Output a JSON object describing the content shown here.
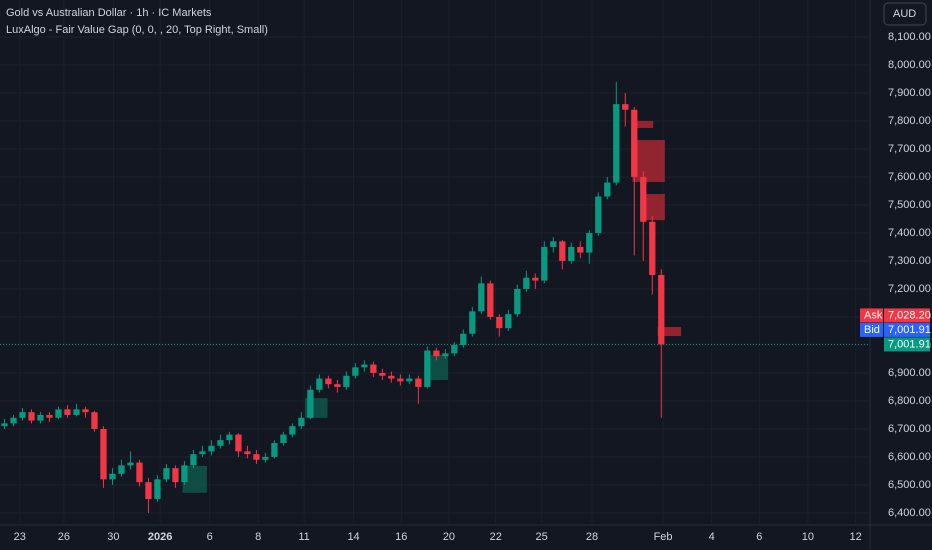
{
  "chart_data": {
    "type": "candlestick",
    "title": "Gold vs Australian Dollar · 1h · IC Markets",
    "subtitle": "LuxAlgo - Fair Value Gap (0, 0, , 20, Top Right, Small)",
    "currency_button": "AUD",
    "up_color": "#089981",
    "down_color": "#f23645",
    "ylim": [
      6357,
      8232
    ],
    "yticks": [
      {
        "value": 6400,
        "label": "6,400.00"
      },
      {
        "value": 6500,
        "label": "6,500.00"
      },
      {
        "value": 6600,
        "label": "6,600.00"
      },
      {
        "value": 6700,
        "label": "6,700.00"
      },
      {
        "value": 6800,
        "label": "6,800.00"
      },
      {
        "value": 6900,
        "label": "6,900.00"
      },
      {
        "value": 7000,
        "label": "7,000.00"
      },
      {
        "value": 7100,
        "label": "7,100.00"
      },
      {
        "value": 7200,
        "label": "7,200.00"
      },
      {
        "value": 7300,
        "label": "7,300.00"
      },
      {
        "value": 7400,
        "label": "7,400.00"
      },
      {
        "value": 7500,
        "label": "7,500.00"
      },
      {
        "value": 7600,
        "label": "7,600.00"
      },
      {
        "value": 7700,
        "label": "7,700.00"
      },
      {
        "value": 7800,
        "label": "7,800.00"
      },
      {
        "value": 7900,
        "label": "7,900.00"
      },
      {
        "value": 8000,
        "label": "8,000.00"
      },
      {
        "value": 8100,
        "label": "8,100.00"
      }
    ],
    "xlim": [
      -0.5,
      96.2
    ],
    "xticks": [
      {
        "value": 1.7,
        "label": "23"
      },
      {
        "value": 6.6,
        "label": "26"
      },
      {
        "value": 12.1,
        "label": "30"
      },
      {
        "value": 17.3,
        "label": "2026"
      },
      {
        "value": 22.8,
        "label": "6"
      },
      {
        "value": 28.2,
        "label": "8"
      },
      {
        "value": 33.3,
        "label": "11"
      },
      {
        "value": 38.8,
        "label": "14"
      },
      {
        "value": 44.1,
        "label": "16"
      },
      {
        "value": 49.4,
        "label": "20"
      },
      {
        "value": 54.6,
        "label": "22"
      },
      {
        "value": 59.7,
        "label": "25"
      },
      {
        "value": 65.3,
        "label": "28"
      },
      {
        "value": 73.2,
        "label": "Feb"
      },
      {
        "value": 78.6,
        "label": "4"
      },
      {
        "value": 83.9,
        "label": "6"
      },
      {
        "value": 89.3,
        "label": "10"
      },
      {
        "value": 94.6,
        "label": "12"
      }
    ],
    "candles": [
      [
        6710,
        6735,
        6700,
        6720
      ],
      [
        6720,
        6750,
        6710,
        6740
      ],
      [
        6740,
        6775,
        6730,
        6760
      ],
      [
        6760,
        6770,
        6720,
        6730
      ],
      [
        6730,
        6760,
        6720,
        6750
      ],
      [
        6750,
        6760,
        6725,
        6740
      ],
      [
        6740,
        6780,
        6735,
        6770
      ],
      [
        6770,
        6785,
        6740,
        6750
      ],
      [
        6750,
        6790,
        6745,
        6770
      ],
      [
        6770,
        6780,
        6740,
        6760
      ],
      [
        6760,
        6765,
        6690,
        6700
      ],
      [
        6700,
        6710,
        6490,
        6520
      ],
      [
        6520,
        6560,
        6500,
        6540
      ],
      [
        6540,
        6590,
        6530,
        6570
      ],
      [
        6570,
        6620,
        6555,
        6580
      ],
      [
        6580,
        6590,
        6495,
        6510
      ],
      [
        6510,
        6525,
        6400,
        6450
      ],
      [
        6450,
        6535,
        6440,
        6520
      ],
      [
        6520,
        6575,
        6510,
        6560
      ],
      [
        6560,
        6570,
        6490,
        6510
      ],
      [
        6510,
        6585,
        6500,
        6570
      ],
      [
        6570,
        6625,
        6560,
        6610
      ],
      [
        6610,
        6640,
        6600,
        6620
      ],
      [
        6620,
        6660,
        6605,
        6640
      ],
      [
        6640,
        6680,
        6630,
        6660
      ],
      [
        6660,
        6690,
        6645,
        6680
      ],
      [
        6680,
        6685,
        6600,
        6620
      ],
      [
        6620,
        6640,
        6595,
        6610
      ],
      [
        6610,
        6625,
        6575,
        6590
      ],
      [
        6590,
        6615,
        6580,
        6600
      ],
      [
        6600,
        6660,
        6595,
        6650
      ],
      [
        6650,
        6690,
        6640,
        6680
      ],
      [
        6680,
        6720,
        6670,
        6710
      ],
      [
        6710,
        6760,
        6700,
        6740
      ],
      [
        6740,
        6855,
        6735,
        6840
      ],
      [
        6840,
        6895,
        6830,
        6880
      ],
      [
        6880,
        6890,
        6845,
        6860
      ],
      [
        6860,
        6875,
        6830,
        6850
      ],
      [
        6850,
        6905,
        6840,
        6890
      ],
      [
        6890,
        6935,
        6880,
        6920
      ],
      [
        6920,
        6945,
        6905,
        6930
      ],
      [
        6930,
        6940,
        6885,
        6900
      ],
      [
        6900,
        6915,
        6875,
        6890
      ],
      [
        6890,
        6905,
        6865,
        6880
      ],
      [
        6880,
        6895,
        6855,
        6870
      ],
      [
        6870,
        6895,
        6860,
        6880
      ],
      [
        6880,
        6890,
        6790,
        6850
      ],
      [
        6850,
        6995,
        6845,
        6980
      ],
      [
        6980,
        6990,
        6945,
        6960
      ],
      [
        6960,
        6985,
        6950,
        6970
      ],
      [
        6970,
        7010,
        6960,
        7000
      ],
      [
        7000,
        7055,
        6990,
        7040
      ],
      [
        7040,
        7135,
        7030,
        7120
      ],
      [
        7120,
        7245,
        7110,
        7220
      ],
      [
        7220,
        7230,
        7090,
        7100
      ],
      [
        7100,
        7110,
        7030,
        7060
      ],
      [
        7060,
        7125,
        7050,
        7110
      ],
      [
        7110,
        7215,
        7100,
        7200
      ],
      [
        7200,
        7265,
        7190,
        7240
      ],
      [
        7240,
        7255,
        7200,
        7230
      ],
      [
        7230,
        7370,
        7220,
        7350
      ],
      [
        7350,
        7385,
        7330,
        7370
      ],
      [
        7370,
        7375,
        7270,
        7300
      ],
      [
        7300,
        7365,
        7290,
        7350
      ],
      [
        7350,
        7370,
        7310,
        7330
      ],
      [
        7330,
        7410,
        7290,
        7400
      ],
      [
        7400,
        7545,
        7390,
        7530
      ],
      [
        7530,
        7600,
        7520,
        7580
      ],
      [
        7580,
        7940,
        7570,
        7860
      ],
      [
        7860,
        7900,
        7780,
        7840
      ],
      [
        7840,
        7850,
        7320,
        7600
      ],
      [
        7600,
        7620,
        7300,
        7440
      ],
      [
        7440,
        7460,
        7180,
        7250
      ],
      [
        7250,
        7270,
        6740,
        7002
      ]
    ],
    "fvg_boxes": [
      {
        "color": "#b22833",
        "range": [
          69.7,
          72.1,
          7775,
          7800
        ]
      },
      {
        "color": "#b22833",
        "range": [
          69.8,
          73.4,
          7582,
          7732
        ]
      },
      {
        "color": "#b22833",
        "range": [
          70.9,
          73.4,
          7446,
          7539
        ]
      },
      {
        "color": "#b22833",
        "range": [
          72.6,
          75.2,
          7032,
          7064
        ]
      },
      {
        "color": "#0f5a4c",
        "range": [
          46.7,
          49.3,
          6875,
          6965
        ]
      },
      {
        "color": "#0f5a4c",
        "range": [
          33.4,
          35.9,
          6740,
          6810
        ]
      },
      {
        "color": "#0f5a4c",
        "range": [
          19.8,
          22.5,
          6472,
          6568
        ]
      }
    ],
    "price_labels": [
      {
        "tag": "Ask",
        "value": 7028.2,
        "value_label": "7,028.20",
        "color": "#f23645"
      },
      {
        "tag": "Bid",
        "value": 7001.91,
        "value_label": "7,001.91",
        "color": "#2962ff"
      },
      {
        "value": 7001.91,
        "value_label": "7,001.91",
        "color": "#089981"
      }
    ]
  }
}
